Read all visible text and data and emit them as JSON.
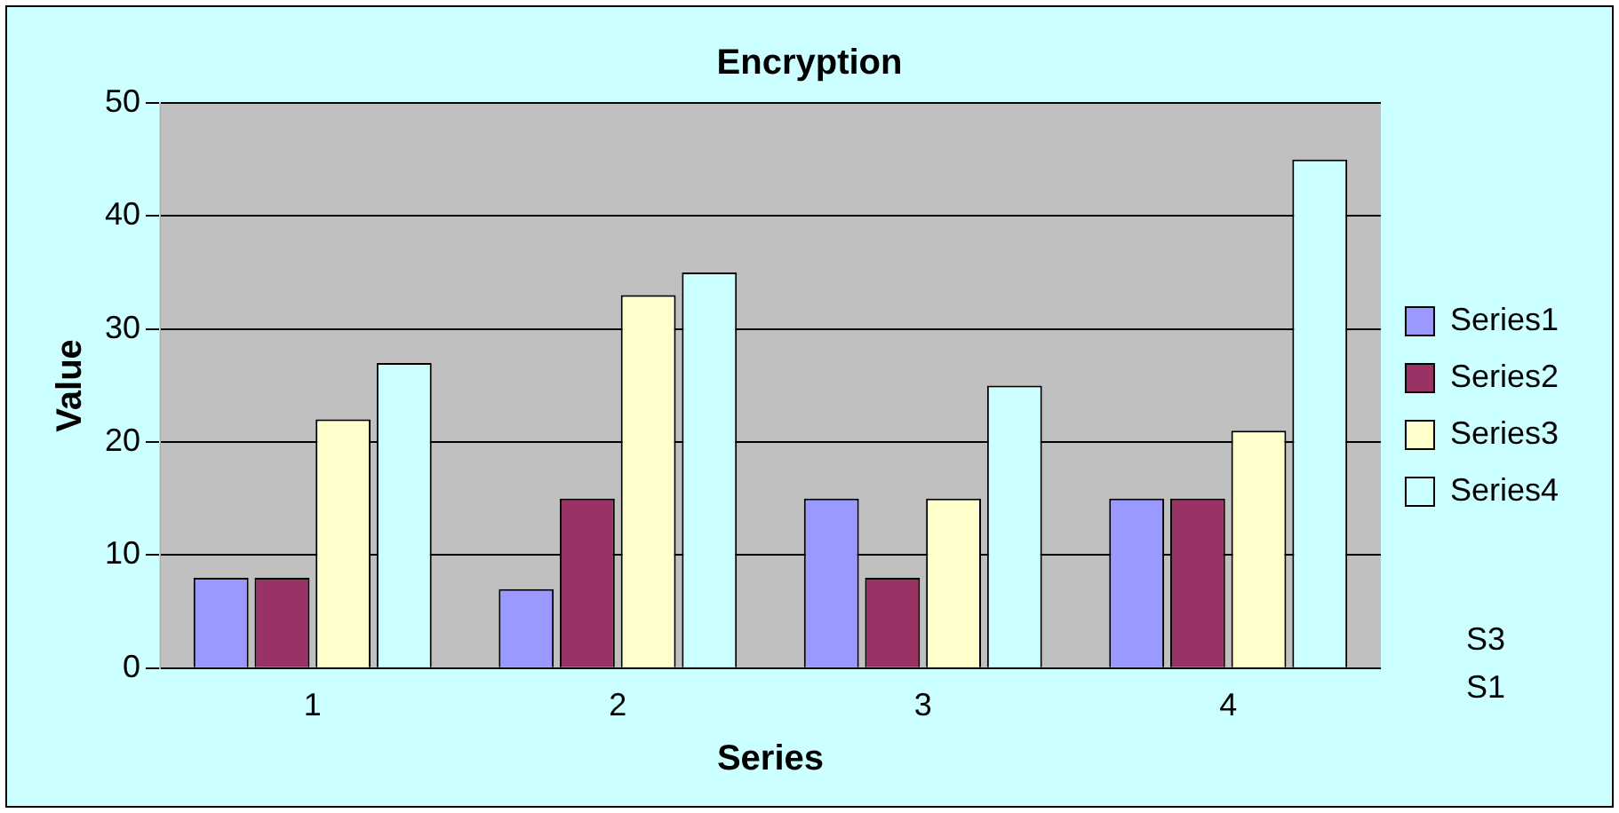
{
  "chart_data": {
    "type": "bar",
    "title": "Encryption",
    "xlabel": "Series",
    "ylabel": "Value",
    "categories": [
      "1",
      "2",
      "3",
      "4"
    ],
    "series": [
      {
        "name": "Series1",
        "color": "#9999ff",
        "values": [
          8,
          7,
          15,
          15
        ]
      },
      {
        "name": "Series2",
        "color": "#993366",
        "values": [
          8,
          15,
          8,
          15
        ]
      },
      {
        "name": "Series3",
        "color": "#ffffcc",
        "values": [
          22,
          33,
          15,
          21
        ]
      },
      {
        "name": "Series4",
        "color": "#ccffff",
        "values": [
          27,
          35,
          25,
          45
        ]
      }
    ],
    "ylim": [
      0,
      50
    ],
    "yticks": [
      0,
      10,
      20,
      30,
      40,
      50
    ],
    "grid": "y",
    "legend": "right",
    "annotations": [
      "S1",
      "S3"
    ]
  }
}
